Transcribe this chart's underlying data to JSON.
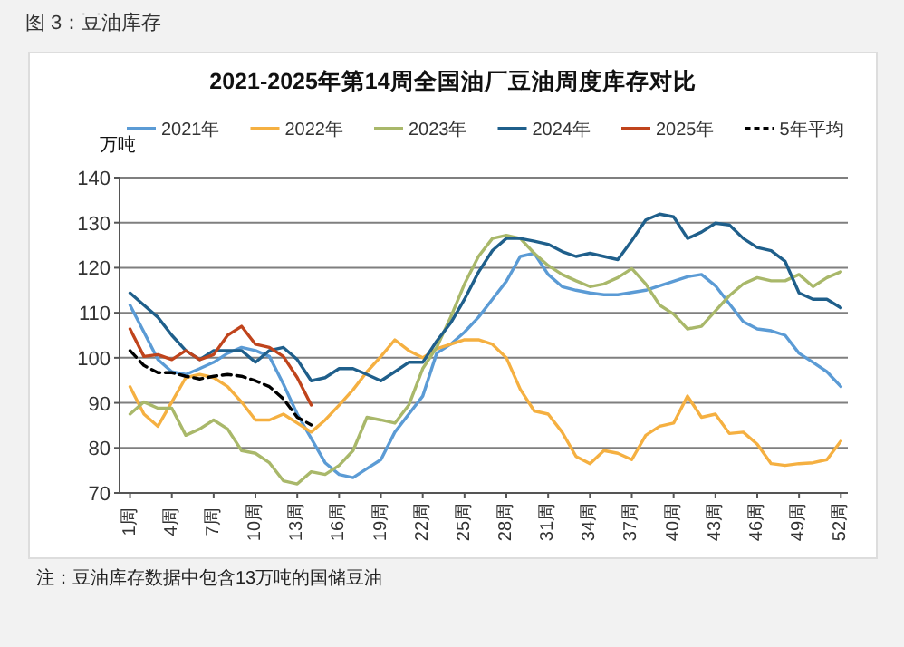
{
  "chart_data": {
    "type": "line",
    "title": "2021-2025年第14周全国油厂豆油周度库存对比",
    "ylabel": "万吨",
    "annotations": [
      "图 3：豆油库存",
      "注：豆油库存数据中包含13万吨的国储豆油"
    ],
    "x": [
      1,
      2,
      3,
      4,
      5,
      6,
      7,
      8,
      9,
      10,
      11,
      12,
      13,
      14,
      15,
      16,
      17,
      18,
      19,
      20,
      21,
      22,
      23,
      24,
      25,
      26,
      27,
      28,
      29,
      30,
      31,
      32,
      33,
      34,
      35,
      36,
      37,
      38,
      39,
      40,
      41,
      42,
      43,
      44,
      45,
      46,
      47,
      48,
      49,
      50,
      51,
      52
    ],
    "xlim": [
      0.25,
      52.5
    ],
    "xticks": [
      {
        "value": 1,
        "label": "1周"
      },
      {
        "value": 4,
        "label": "4周"
      },
      {
        "value": 7,
        "label": "7周"
      },
      {
        "value": 10,
        "label": "10周"
      },
      {
        "value": 13,
        "label": "13周"
      },
      {
        "value": 16,
        "label": "16周"
      },
      {
        "value": 19,
        "label": "19周"
      },
      {
        "value": 22,
        "label": "22周"
      },
      {
        "value": 25,
        "label": "25周"
      },
      {
        "value": 28,
        "label": "28周"
      },
      {
        "value": 31,
        "label": "31周"
      },
      {
        "value": 34,
        "label": "34周"
      },
      {
        "value": 37,
        "label": "37周"
      },
      {
        "value": 40,
        "label": "40周"
      },
      {
        "value": 43,
        "label": "43周"
      },
      {
        "value": 46,
        "label": "46周"
      },
      {
        "value": 49,
        "label": "49周"
      },
      {
        "value": 52,
        "label": "52周"
      }
    ],
    "ylim": [
      70,
      140
    ],
    "yticks": [
      70,
      80,
      90,
      100,
      110,
      120,
      130,
      140
    ],
    "grid": "y",
    "legend": "top",
    "series": [
      {
        "name": "2021年",
        "color": "#5b9bd5",
        "values": [
          111.7,
          105.7,
          99.6,
          96.9,
          96.3,
          97.6,
          99,
          101,
          102.3,
          101.6,
          100.3,
          94.2,
          87.5,
          82.1,
          76.7,
          74.1,
          73.4,
          75.4,
          77.4,
          83.5,
          87.5,
          91.5,
          101,
          103,
          105.7,
          109,
          113,
          117,
          122.5,
          123.2,
          118.5,
          115.8,
          115,
          114.4,
          114,
          114,
          114.5,
          115,
          116,
          117,
          118,
          118.5,
          116,
          112,
          108,
          106.4,
          106,
          105,
          101,
          99,
          96.9,
          93.6
        ]
      },
      {
        "name": "2022年",
        "color": "#f5b041",
        "values": [
          93.6,
          87.5,
          84.8,
          90.2,
          95.6,
          96.3,
          95.6,
          93.6,
          90.2,
          86.2,
          86.2,
          87.5,
          85.5,
          83.5,
          86.2,
          89.5,
          92.9,
          96.9,
          100.3,
          104,
          101.6,
          100,
          102,
          103,
          104,
          104,
          103,
          100,
          93,
          88.2,
          87.5,
          83.5,
          78.1,
          76.5,
          79.4,
          78.8,
          77.4,
          82.8,
          84.8,
          85.5,
          91.5,
          86.8,
          87.5,
          83.2,
          83.5,
          80.8,
          76.5,
          76.1,
          76.5,
          76.7,
          77.4,
          81.5
        ]
      },
      {
        "name": "2023年",
        "color": "#a9b86a",
        "values": [
          87.5,
          90.2,
          88.8,
          88.8,
          82.8,
          84.2,
          86.2,
          84.2,
          79.4,
          78.8,
          76.7,
          72.7,
          72,
          74.7,
          74.1,
          76.1,
          79.4,
          86.8,
          86.2,
          85.5,
          89.5,
          97.6,
          102.3,
          109,
          116.4,
          122.5,
          126.5,
          127.2,
          126.5,
          123.2,
          120.5,
          118.5,
          117.1,
          115.8,
          116.4,
          117.8,
          119.8,
          116.4,
          111.7,
          109.7,
          106.4,
          107,
          110.4,
          113.8,
          116.4,
          117.8,
          117.1,
          117.1,
          118.5,
          115.8,
          117.8,
          119.1
        ]
      },
      {
        "name": "2024年",
        "color": "#1f5f8b",
        "values": [
          114.4,
          111.7,
          109,
          105,
          101.6,
          99.6,
          101.6,
          101.6,
          101.6,
          99,
          101.6,
          102.3,
          99.6,
          94.9,
          95.6,
          97.6,
          97.6,
          96.3,
          94.9,
          96.9,
          99,
          99,
          103.7,
          107.7,
          113,
          119,
          123.8,
          126.5,
          126.5,
          125.9,
          125.2,
          123.6,
          122.5,
          123.2,
          122.5,
          121.8,
          126,
          130.6,
          131.9,
          131.3,
          126.5,
          127.9,
          129.9,
          129.5,
          126.5,
          124.5,
          123.8,
          121.4,
          114.4,
          113,
          113,
          111.1
        ]
      },
      {
        "name": "2025年",
        "color": "#c0441c",
        "values": [
          106.4,
          100.3,
          100.7,
          99.6,
          101.6,
          99.6,
          100.7,
          105,
          107,
          103,
          102.3,
          100.3,
          95.6,
          89.5,
          null,
          null,
          null,
          null,
          null,
          null,
          null,
          null,
          null,
          null,
          null,
          null,
          null,
          null,
          null,
          null,
          null,
          null,
          null,
          null,
          null,
          null,
          null,
          null,
          null,
          null,
          null,
          null,
          null,
          null,
          null,
          null,
          null,
          null,
          null,
          null,
          null,
          null
        ]
      },
      {
        "name": "5年平均",
        "color": "#000000",
        "line_style": "dashed",
        "values": [
          101.6,
          98.3,
          96.7,
          96.7,
          95.9,
          95.3,
          95.9,
          96.3,
          95.9,
          94.9,
          93.6,
          90.9,
          86.8,
          85.1,
          null,
          null,
          null,
          null,
          null,
          null,
          null,
          null,
          null,
          null,
          null,
          null,
          null,
          null,
          null,
          null,
          null,
          null,
          null,
          null,
          null,
          null,
          null,
          null,
          null,
          null,
          null,
          null,
          null,
          null,
          null,
          null,
          null,
          null,
          null,
          null,
          null,
          null
        ]
      }
    ]
  }
}
